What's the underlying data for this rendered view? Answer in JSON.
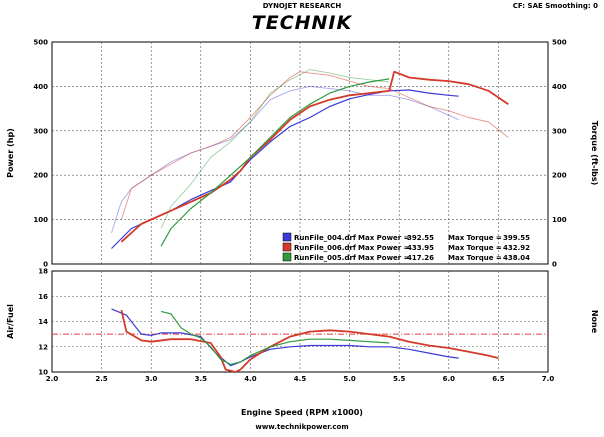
{
  "header": {
    "center_text": "DYNOJET RESEARCH",
    "right_text": "CF: SAE  Smoothing: 0",
    "logo_text": "TECHNIK"
  },
  "footer": {
    "xlabel": "Engine Speed (RPM x1000)",
    "url": "www.technikpower.com"
  },
  "colors": {
    "run_004": "#3a3ad8",
    "run_006": "#d43a2a",
    "run_005": "#2f9a3a",
    "reference_line": "#e04040",
    "grid": "#555555"
  },
  "chart_data": [
    {
      "type": "line",
      "xlabel": "",
      "ylabel": "Power (hp)",
      "y2label": "Torque (ft-lbs)",
      "xlim": [
        2.0,
        7.0
      ],
      "ylim": [
        0,
        500
      ],
      "y2lim": [
        0,
        500
      ],
      "yticks": [
        "0",
        "100",
        "200",
        "300",
        "400",
        "500"
      ],
      "y2ticks": [
        "0",
        "100",
        "200",
        "300",
        "400",
        "500"
      ],
      "grid": true,
      "legend": {
        "placement": "bottom-right",
        "entries": [
          {
            "run": "RunFile_004.drf",
            "power_label": "Max Power =",
            "power": "392.55",
            "torque_label": "Max Torque =",
            "torque": "399.55",
            "color_key": "run_004"
          },
          {
            "run": "RunFile_006.drf",
            "power_label": "Max Power =",
            "power": "433.95",
            "torque_label": "Max Torque =",
            "torque": "432.92",
            "color_key": "run_006"
          },
          {
            "run": "RunFile_005.drf",
            "power_label": "Max Power =",
            "power": "417.26",
            "torque_label": "Max Torque =",
            "torque": "438.04",
            "color_key": "run_005"
          }
        ]
      },
      "series": [
        {
          "run": "RunFile_004.drf",
          "kind": "power",
          "color_key": "run_004",
          "width": 1.2,
          "x": [
            2.6,
            2.8,
            3.0,
            3.2,
            3.4,
            3.6,
            3.8,
            4.0,
            4.2,
            4.4,
            4.6,
            4.8,
            5.0,
            5.2,
            5.4,
            5.6,
            5.8,
            6.0,
            6.1
          ],
          "y": [
            35,
            80,
            100,
            120,
            145,
            165,
            185,
            235,
            275,
            310,
            330,
            355,
            372,
            382,
            390,
            392,
            385,
            380,
            378
          ]
        },
        {
          "run": "RunFile_004.drf",
          "kind": "torque",
          "color_key": "run_004",
          "width": 0.9,
          "opacity": 0.45,
          "x": [
            2.6,
            2.7,
            2.8,
            3.0,
            3.2,
            3.4,
            3.6,
            3.8,
            4.0,
            4.2,
            4.4,
            4.6,
            4.8,
            5.0,
            5.2,
            5.4,
            5.6,
            5.8,
            6.0,
            6.1
          ],
          "y": [
            70,
            140,
            170,
            200,
            230,
            250,
            265,
            280,
            320,
            370,
            390,
            400,
            395,
            390,
            380,
            380,
            370,
            355,
            335,
            325
          ]
        },
        {
          "run": "RunFile_006.drf",
          "kind": "power",
          "color_key": "run_006",
          "width": 1.8,
          "x": [
            2.7,
            2.9,
            3.2,
            3.4,
            3.6,
            3.8,
            3.9,
            4.0,
            4.2,
            4.4,
            4.6,
            4.8,
            5.0,
            5.2,
            5.4,
            5.45,
            5.6,
            5.8,
            6.0,
            6.2,
            6.4,
            6.5,
            6.6
          ],
          "y": [
            50,
            90,
            120,
            140,
            160,
            190,
            210,
            240,
            280,
            325,
            355,
            370,
            380,
            385,
            390,
            433,
            420,
            415,
            412,
            405,
            390,
            375,
            360
          ]
        },
        {
          "run": "RunFile_006.drf",
          "kind": "torque",
          "color_key": "run_006",
          "width": 0.9,
          "opacity": 0.55,
          "x": [
            2.7,
            2.8,
            3.0,
            3.2,
            3.4,
            3.6,
            3.8,
            4.0,
            4.2,
            4.4,
            4.5,
            4.6,
            4.8,
            5.0,
            5.2,
            5.4,
            5.6,
            5.8,
            6.0,
            6.2,
            6.4,
            6.6
          ],
          "y": [
            100,
            170,
            200,
            225,
            250,
            265,
            285,
            330,
            380,
            420,
            433,
            430,
            425,
            412,
            400,
            395,
            375,
            355,
            345,
            330,
            320,
            285
          ]
        },
        {
          "run": "RunFile_005.drf",
          "kind": "power",
          "color_key": "run_005",
          "width": 1.2,
          "x": [
            3.1,
            3.2,
            3.4,
            3.6,
            3.8,
            4.0,
            4.2,
            4.4,
            4.6,
            4.8,
            5.0,
            5.2,
            5.4
          ],
          "y": [
            40,
            80,
            125,
            160,
            200,
            240,
            285,
            330,
            360,
            385,
            400,
            410,
            417
          ]
        },
        {
          "run": "RunFile_005.drf",
          "kind": "torque",
          "color_key": "run_005",
          "width": 0.9,
          "opacity": 0.45,
          "x": [
            3.1,
            3.2,
            3.4,
            3.6,
            3.8,
            4.0,
            4.2,
            4.4,
            4.6,
            4.8,
            5.0,
            5.2,
            5.4
          ],
          "y": [
            80,
            130,
            180,
            240,
            275,
            320,
            385,
            415,
            438,
            430,
            420,
            415,
            410
          ]
        }
      ]
    },
    {
      "type": "line",
      "xlabel": "Engine Speed (RPM x1000)",
      "ylabel": "Air/Fuel",
      "y2label": "None",
      "xlim": [
        2.0,
        7.0
      ],
      "ylim": [
        10,
        18
      ],
      "xticks": [
        "2.0",
        "2.5",
        "3.0",
        "3.5",
        "4.0",
        "4.5",
        "5.0",
        "5.5",
        "6.0",
        "6.5",
        "7.0"
      ],
      "yticks": [
        "10",
        "12",
        "14",
        "16",
        "18"
      ],
      "reference_line": {
        "y": 13.0,
        "style": "dash-dot",
        "color_key": "reference_line"
      },
      "grid": true,
      "series": [
        {
          "run": "RunFile_004.drf",
          "color_key": "run_004",
          "width": 1.2,
          "x": [
            2.6,
            2.75,
            2.9,
            3.0,
            3.1,
            3.3,
            3.5,
            3.65,
            3.8,
            3.9,
            4.0,
            4.2,
            4.4,
            4.6,
            4.8,
            5.0,
            5.2,
            5.4,
            5.6,
            5.8,
            6.0,
            6.1
          ],
          "y": [
            15.0,
            14.5,
            13.0,
            12.9,
            13.1,
            13.1,
            12.8,
            11.5,
            10.5,
            10.8,
            11.2,
            11.8,
            12.0,
            12.1,
            12.1,
            12.1,
            12.0,
            12.0,
            11.8,
            11.5,
            11.2,
            11.1
          ]
        },
        {
          "run": "RunFile_006.drf",
          "color_key": "run_006",
          "width": 1.8,
          "x": [
            2.7,
            2.75,
            2.9,
            3.0,
            3.2,
            3.4,
            3.6,
            3.7,
            3.75,
            3.85,
            3.9,
            4.0,
            4.2,
            4.4,
            4.6,
            4.8,
            5.0,
            5.2,
            5.4,
            5.6,
            5.8,
            6.0,
            6.2,
            6.4,
            6.5
          ],
          "y": [
            14.9,
            13.2,
            12.5,
            12.4,
            12.6,
            12.6,
            12.3,
            11.2,
            10.2,
            10.0,
            10.2,
            11.0,
            12.0,
            12.8,
            13.2,
            13.3,
            13.2,
            13.0,
            12.8,
            12.4,
            12.1,
            11.9,
            11.6,
            11.3,
            11.1
          ]
        },
        {
          "run": "RunFile_005.drf",
          "color_key": "run_005",
          "width": 1.2,
          "x": [
            3.1,
            3.2,
            3.3,
            3.4,
            3.5,
            3.6,
            3.7,
            3.8,
            3.9,
            4.0,
            4.2,
            4.4,
            4.6,
            4.8,
            5.0,
            5.2,
            5.4
          ],
          "y": [
            14.8,
            14.6,
            13.5,
            13.0,
            12.7,
            12.0,
            11.0,
            10.6,
            10.8,
            11.3,
            12.0,
            12.4,
            12.6,
            12.6,
            12.5,
            12.4,
            12.3
          ]
        }
      ]
    }
  ]
}
